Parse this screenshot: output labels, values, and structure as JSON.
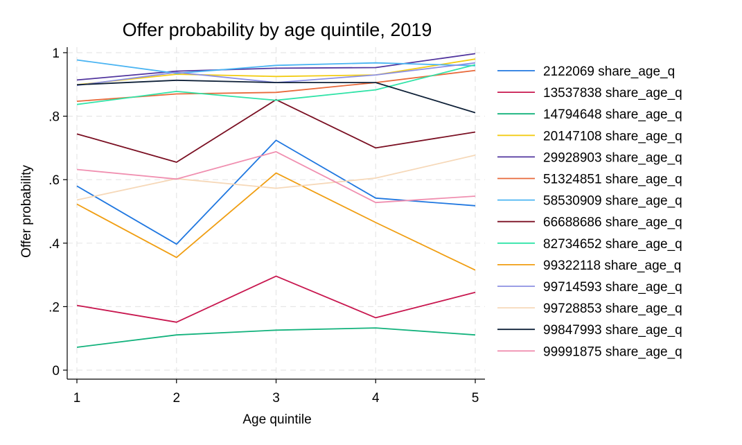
{
  "chart_data": {
    "type": "line",
    "title": "Offer probability by age quintile, 2019",
    "xlabel": "Age quintile",
    "ylabel": "Offer probability",
    "x": [
      1,
      2,
      3,
      4,
      5
    ],
    "x_ticks": [
      "1",
      "2",
      "3",
      "4",
      "5"
    ],
    "ylim": [
      0,
      1
    ],
    "y_ticks": [
      "0",
      ".2",
      ".4",
      ".6",
      ".8",
      "1"
    ],
    "y_tick_values": [
      0,
      0.2,
      0.4,
      0.6,
      0.8,
      1
    ],
    "grid": true,
    "legend_position": "right",
    "series": [
      {
        "name": "2122069 share_age_q",
        "color": "#1f77e0",
        "values": [
          0.58,
          0.397,
          0.724,
          0.542,
          0.518
        ]
      },
      {
        "name": "13537838 share_age_q",
        "color": "#c8174f",
        "values": [
          0.204,
          0.151,
          0.296,
          0.165,
          0.245
        ]
      },
      {
        "name": "14794648 share_age_q",
        "color": "#12b27c",
        "values": [
          0.072,
          0.111,
          0.126,
          0.133,
          0.111
        ]
      },
      {
        "name": "20147108 share_age_q",
        "color": "#f2cc14",
        "values": [
          0.899,
          0.932,
          0.925,
          0.93,
          0.98
        ]
      },
      {
        "name": "29928903 share_age_q",
        "color": "#51359e",
        "values": [
          0.914,
          0.942,
          0.951,
          0.953,
          0.997
        ]
      },
      {
        "name": "51324851 share_age_q",
        "color": "#e8693a",
        "values": [
          0.847,
          0.87,
          0.875,
          0.906,
          0.944
        ]
      },
      {
        "name": "58530909 share_age_q",
        "color": "#4ab4f2",
        "values": [
          0.977,
          0.935,
          0.96,
          0.968,
          0.959
        ]
      },
      {
        "name": "66688686 share_age_q",
        "color": "#7a0f22",
        "values": [
          0.744,
          0.655,
          0.852,
          0.7,
          0.75
        ]
      },
      {
        "name": "82734652 share_age_q",
        "color": "#2fe3a7",
        "values": [
          0.837,
          0.878,
          0.85,
          0.883,
          0.962
        ]
      },
      {
        "name": "99322118 share_age_q",
        "color": "#f09e12",
        "values": [
          0.523,
          0.355,
          0.621,
          0.465,
          0.315
        ]
      },
      {
        "name": "99714593 share_age_q",
        "color": "#8b8fe3",
        "values": [
          0.897,
          0.938,
          0.906,
          0.93,
          0.968
        ]
      },
      {
        "name": "99728853 share_age_q",
        "color": "#f6d8b8",
        "values": [
          0.536,
          0.603,
          0.573,
          0.605,
          0.677
        ]
      },
      {
        "name": "99847993 share_age_q",
        "color": "#0f2138",
        "values": [
          0.899,
          0.913,
          0.906,
          0.906,
          0.811
        ]
      },
      {
        "name": "99991875 share_age_q",
        "color": "#f08fb0",
        "values": [
          0.632,
          0.602,
          0.688,
          0.528,
          0.548
        ]
      }
    ]
  }
}
